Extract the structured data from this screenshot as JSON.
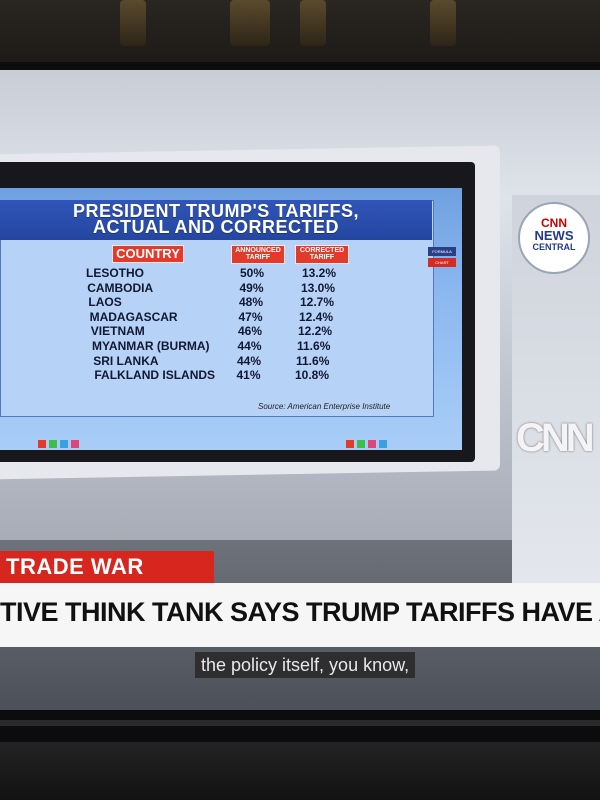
{
  "chart": {
    "title_line1": "PRESIDENT TRUMP'S TARIFFS,",
    "title_line2": "ACTUAL AND CORRECTED",
    "col_country": "COUNTRY",
    "col_announced": "ANNOUNCED TARIFF",
    "col_corrected": "CORRECTED TARIFF",
    "rows": [
      {
        "country": "LESOTHO",
        "announced": "50%",
        "corrected": "13.2%"
      },
      {
        "country": "CAMBODIA",
        "announced": "49%",
        "corrected": "13.0%"
      },
      {
        "country": "LAOS",
        "announced": "48%",
        "corrected": "12.7%"
      },
      {
        "country": "MADAGASCAR",
        "announced": "47%",
        "corrected": "12.4%"
      },
      {
        "country": "VIETNAM",
        "announced": "46%",
        "corrected": "12.2%"
      },
      {
        "country": "MYANMAR (BURMA)",
        "announced": "44%",
        "corrected": "11.6%"
      },
      {
        "country": "SRI LANKA",
        "announced": "44%",
        "corrected": "11.6%"
      },
      {
        "country": "FALKLAND ISLANDS",
        "announced": "41%",
        "corrected": "10.8%"
      }
    ],
    "source": "Source: American Enterprise Institute",
    "side_tag_1": "FORMULA",
    "side_tag_2": "CHART"
  },
  "branding": {
    "logo_cnn": "CNN",
    "logo_news": "NEWS",
    "logo_central": "CENTRAL",
    "wall_logo": "CNN"
  },
  "lower_third": {
    "section": "TRADE WAR",
    "headline": "TIVE THINK TANK SAYS TRUMP TARIFFS HAVE A MATH"
  },
  "caption": "the policy itself, you know,",
  "colors": {
    "accent_red": "#d7261e",
    "chart_blue": "#2446a0"
  }
}
